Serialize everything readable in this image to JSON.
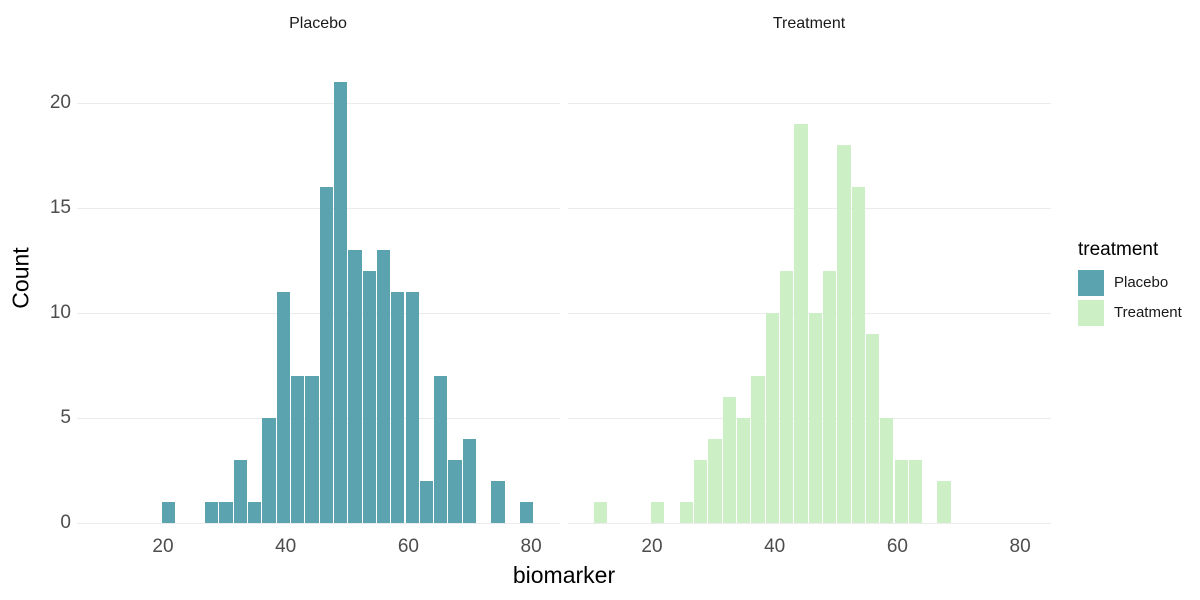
{
  "chart_data": {
    "type": "bar",
    "subtype": "faceted-histogram",
    "title": "",
    "xlabel": "biomarker",
    "ylabel": "Count",
    "legend_title": "treatment",
    "legend_position": "right",
    "facet_titles": [
      "Placebo",
      "Treatment"
    ],
    "x_ticks": [
      20,
      40,
      60,
      80
    ],
    "y_ticks": [
      0,
      5,
      10,
      15,
      20
    ],
    "xlim": [
      6,
      84.7
    ],
    "ylim": [
      0,
      22
    ],
    "bin_width": 2.33,
    "grid": "horizontal-major-only",
    "grid_color": "#EBEBEB",
    "tick_label_color": "#4D4D4D",
    "series": [
      {
        "name": "Placebo",
        "color": "#5AA3AF",
        "bins": [
          [
            20.95,
            1
          ],
          [
            27.95,
            1
          ],
          [
            30.28,
            1
          ],
          [
            32.62,
            3
          ],
          [
            34.95,
            1
          ],
          [
            37.28,
            5
          ],
          [
            39.62,
            11
          ],
          [
            41.95,
            7
          ],
          [
            44.28,
            7
          ],
          [
            46.62,
            16
          ],
          [
            48.95,
            21
          ],
          [
            51.28,
            13
          ],
          [
            53.62,
            12
          ],
          [
            55.95,
            13
          ],
          [
            58.28,
            11
          ],
          [
            60.62,
            11
          ],
          [
            62.95,
            2
          ],
          [
            65.28,
            7
          ],
          [
            67.62,
            3
          ],
          [
            69.95,
            4
          ],
          [
            74.62,
            2
          ],
          [
            79.28,
            1
          ]
        ]
      },
      {
        "name": "Treatment",
        "color": "#CCEFC6",
        "bins": [
          [
            11.62,
            1
          ],
          [
            20.95,
            1
          ],
          [
            25.62,
            1
          ],
          [
            27.95,
            3
          ],
          [
            30.28,
            4
          ],
          [
            32.62,
            6
          ],
          [
            34.95,
            5
          ],
          [
            37.28,
            7
          ],
          [
            39.62,
            10
          ],
          [
            41.95,
            12
          ],
          [
            44.28,
            19
          ],
          [
            46.62,
            10
          ],
          [
            48.95,
            12
          ],
          [
            51.28,
            18
          ],
          [
            53.62,
            16
          ],
          [
            55.95,
            9
          ],
          [
            58.28,
            5
          ],
          [
            60.62,
            3
          ],
          [
            62.95,
            3
          ],
          [
            67.62,
            2
          ]
        ]
      }
    ]
  }
}
